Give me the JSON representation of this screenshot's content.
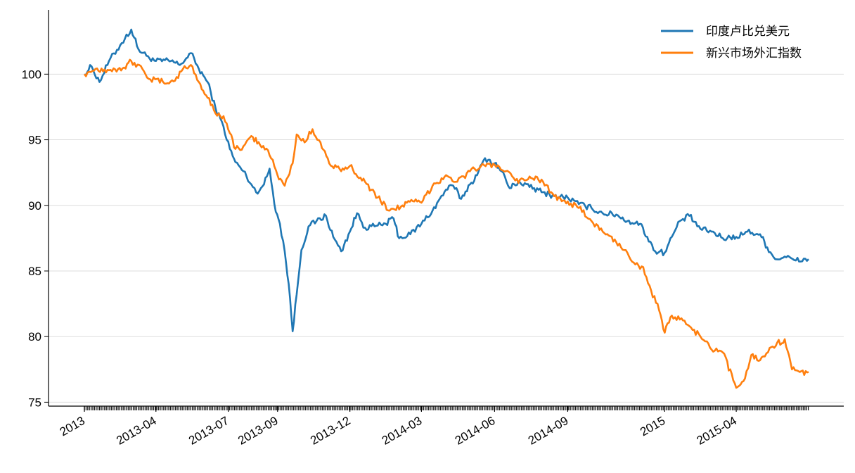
{
  "chart_data": {
    "type": "line",
    "title": "",
    "xlabel": "",
    "ylabel": "",
    "ylim": [
      74.7,
      104.9
    ],
    "grid": "y-major",
    "legend_position": "top-right",
    "yticks": [
      75,
      80,
      85,
      90,
      95,
      100
    ],
    "xtick_labels": [
      {
        "date": "2013-01-01",
        "label": "2013"
      },
      {
        "date": "2013-04-01",
        "label": "2013-04"
      },
      {
        "date": "2013-07-01",
        "label": "2013-07"
      },
      {
        "date": "2013-09-01",
        "label": "2013-09"
      },
      {
        "date": "2013-12-01",
        "label": "2013-12"
      },
      {
        "date": "2014-03-01",
        "label": "2014-03"
      },
      {
        "date": "2014-06-01",
        "label": "2014-06"
      },
      {
        "date": "2014-09-01",
        "label": "2014-09"
      },
      {
        "date": "2015-01-01",
        "label": "2015"
      },
      {
        "date": "2015-04-01",
        "label": "2015-04"
      }
    ],
    "series": [
      {
        "name": "印度卢比兑美元",
        "color": "#1f77b4",
        "points": [
          [
            "2013-01-01",
            100.0
          ],
          [
            "2013-01-10",
            100.6
          ],
          [
            "2013-01-20",
            99.4
          ],
          [
            "2013-02-01",
            101.0
          ],
          [
            "2013-02-15",
            102.2
          ],
          [
            "2013-03-01",
            103.4
          ],
          [
            "2013-03-10",
            101.9
          ],
          [
            "2013-03-20",
            101.4
          ],
          [
            "2013-04-01",
            101.0
          ],
          [
            "2013-04-20",
            101.0
          ],
          [
            "2013-05-01",
            100.7
          ],
          [
            "2013-05-15",
            101.6
          ],
          [
            "2013-05-25",
            100.4
          ],
          [
            "2013-06-05",
            99.4
          ],
          [
            "2013-06-15",
            97.4
          ],
          [
            "2013-06-25",
            96.0
          ],
          [
            "2013-07-03",
            94.3
          ],
          [
            "2013-07-10",
            93.3
          ],
          [
            "2013-07-20",
            92.6
          ],
          [
            "2013-07-30",
            91.6
          ],
          [
            "2013-08-05",
            91.0
          ],
          [
            "2013-08-15",
            91.6
          ],
          [
            "2013-08-22",
            92.8
          ],
          [
            "2013-08-28",
            90.1
          ],
          [
            "2013-09-04",
            88.6
          ],
          [
            "2013-09-10",
            86.5
          ],
          [
            "2013-09-15",
            84.0
          ],
          [
            "2013-09-20",
            80.4
          ],
          [
            "2013-09-25",
            83.2
          ],
          [
            "2013-10-01",
            86.6
          ],
          [
            "2013-10-10",
            88.4
          ],
          [
            "2013-10-20",
            88.8
          ],
          [
            "2013-11-01",
            89.2
          ],
          [
            "2013-11-10",
            87.6
          ],
          [
            "2013-11-20",
            86.5
          ],
          [
            "2013-12-01",
            88.0
          ],
          [
            "2013-12-10",
            89.4
          ],
          [
            "2013-12-20",
            88.3
          ],
          [
            "2014-01-01",
            88.4
          ],
          [
            "2014-01-15",
            88.6
          ],
          [
            "2014-01-25",
            89.0
          ],
          [
            "2014-02-01",
            87.5
          ],
          [
            "2014-02-15",
            87.8
          ],
          [
            "2014-03-01",
            88.6
          ],
          [
            "2014-03-15",
            89.6
          ],
          [
            "2014-04-01",
            91.2
          ],
          [
            "2014-04-10",
            91.5
          ],
          [
            "2014-04-20",
            90.5
          ],
          [
            "2014-05-01",
            91.6
          ],
          [
            "2014-05-10",
            92.3
          ],
          [
            "2014-05-20",
            93.6
          ],
          [
            "2014-06-01",
            93.2
          ],
          [
            "2014-06-10",
            92.6
          ],
          [
            "2014-06-20",
            91.3
          ],
          [
            "2014-07-01",
            91.8
          ],
          [
            "2014-07-15",
            91.4
          ],
          [
            "2014-08-01",
            91.0
          ],
          [
            "2014-08-15",
            90.7
          ],
          [
            "2014-09-01",
            90.6
          ],
          [
            "2014-09-15",
            90.1
          ],
          [
            "2014-10-01",
            89.8
          ],
          [
            "2014-10-15",
            89.4
          ],
          [
            "2014-11-01",
            89.3
          ],
          [
            "2014-11-15",
            88.8
          ],
          [
            "2014-12-01",
            88.6
          ],
          [
            "2014-12-10",
            87.6
          ],
          [
            "2014-12-20",
            86.5
          ],
          [
            "2015-01-01",
            86.4
          ],
          [
            "2015-01-10",
            87.6
          ],
          [
            "2015-01-20",
            88.8
          ],
          [
            "2015-02-01",
            89.2
          ],
          [
            "2015-02-15",
            88.2
          ],
          [
            "2015-03-01",
            88.0
          ],
          [
            "2015-03-15",
            87.5
          ],
          [
            "2015-04-01",
            87.6
          ],
          [
            "2015-04-15",
            88.0
          ],
          [
            "2015-05-01",
            87.8
          ],
          [
            "2015-05-10",
            86.8
          ],
          [
            "2015-05-20",
            85.9
          ],
          [
            "2015-06-01",
            86.1
          ],
          [
            "2015-06-15",
            85.8
          ],
          [
            "2015-07-01",
            85.9
          ]
        ]
      },
      {
        "name": "新兴市场外汇指数",
        "color": "#ff7f0e",
        "points": [
          [
            "2013-01-01",
            100.0
          ],
          [
            "2013-01-15",
            100.4
          ],
          [
            "2013-02-01",
            100.3
          ],
          [
            "2013-02-20",
            100.5
          ],
          [
            "2013-03-01",
            101.0
          ],
          [
            "2013-03-15",
            100.4
          ],
          [
            "2013-03-25",
            99.6
          ],
          [
            "2013-04-10",
            99.4
          ],
          [
            "2013-04-25",
            99.5
          ],
          [
            "2013-05-05",
            100.4
          ],
          [
            "2013-05-15",
            100.7
          ],
          [
            "2013-05-25",
            99.4
          ],
          [
            "2013-06-05",
            98.2
          ],
          [
            "2013-06-15",
            97.0
          ],
          [
            "2013-06-25",
            96.8
          ],
          [
            "2013-07-03",
            95.5
          ],
          [
            "2013-07-10",
            94.3
          ],
          [
            "2013-07-20",
            94.5
          ],
          [
            "2013-08-01",
            95.2
          ],
          [
            "2013-08-10",
            94.6
          ],
          [
            "2013-08-20",
            94.2
          ],
          [
            "2013-09-01",
            92.3
          ],
          [
            "2013-09-10",
            91.5
          ],
          [
            "2013-09-20",
            93.2
          ],
          [
            "2013-09-25",
            95.4
          ],
          [
            "2013-10-05",
            94.8
          ],
          [
            "2013-10-15",
            95.8
          ],
          [
            "2013-10-25",
            94.8
          ],
          [
            "2013-11-05",
            93.2
          ],
          [
            "2013-11-20",
            92.6
          ],
          [
            "2013-12-01",
            93.0
          ],
          [
            "2013-12-20",
            91.8
          ],
          [
            "2014-01-05",
            90.6
          ],
          [
            "2014-01-20",
            89.6
          ],
          [
            "2014-02-05",
            90.0
          ],
          [
            "2014-02-20",
            90.3
          ],
          [
            "2014-03-01",
            90.2
          ],
          [
            "2014-03-15",
            91.5
          ],
          [
            "2014-04-01",
            92.3
          ],
          [
            "2014-04-15",
            91.8
          ],
          [
            "2014-05-01",
            92.6
          ],
          [
            "2014-05-15",
            93.0
          ],
          [
            "2014-06-01",
            93.1
          ],
          [
            "2014-06-15",
            92.6
          ],
          [
            "2014-07-01",
            91.7
          ],
          [
            "2014-07-15",
            92.2
          ],
          [
            "2014-08-01",
            91.8
          ],
          [
            "2014-08-15",
            90.7
          ],
          [
            "2014-09-01",
            90.3
          ],
          [
            "2014-09-15",
            89.8
          ],
          [
            "2014-10-01",
            88.8
          ],
          [
            "2014-10-15",
            88.0
          ],
          [
            "2014-11-01",
            87.2
          ],
          [
            "2014-11-15",
            86.4
          ],
          [
            "2014-11-25",
            85.5
          ],
          [
            "2014-12-05",
            85.3
          ],
          [
            "2014-12-15",
            83.5
          ],
          [
            "2014-12-25",
            82.0
          ],
          [
            "2015-01-01",
            80.3
          ],
          [
            "2015-01-10",
            81.6
          ],
          [
            "2015-01-20",
            81.3
          ],
          [
            "2015-02-01",
            80.8
          ],
          [
            "2015-02-15",
            80.0
          ],
          [
            "2015-03-01",
            79.0
          ],
          [
            "2015-03-15",
            78.8
          ],
          [
            "2015-04-01",
            76.1
          ],
          [
            "2015-04-10",
            76.6
          ],
          [
            "2015-04-20",
            78.6
          ],
          [
            "2015-05-01",
            78.2
          ],
          [
            "2015-05-15",
            79.2
          ],
          [
            "2015-06-01",
            79.8
          ],
          [
            "2015-06-10",
            77.5
          ],
          [
            "2015-06-20",
            77.3
          ],
          [
            "2015-07-01",
            77.3
          ]
        ]
      }
    ]
  }
}
